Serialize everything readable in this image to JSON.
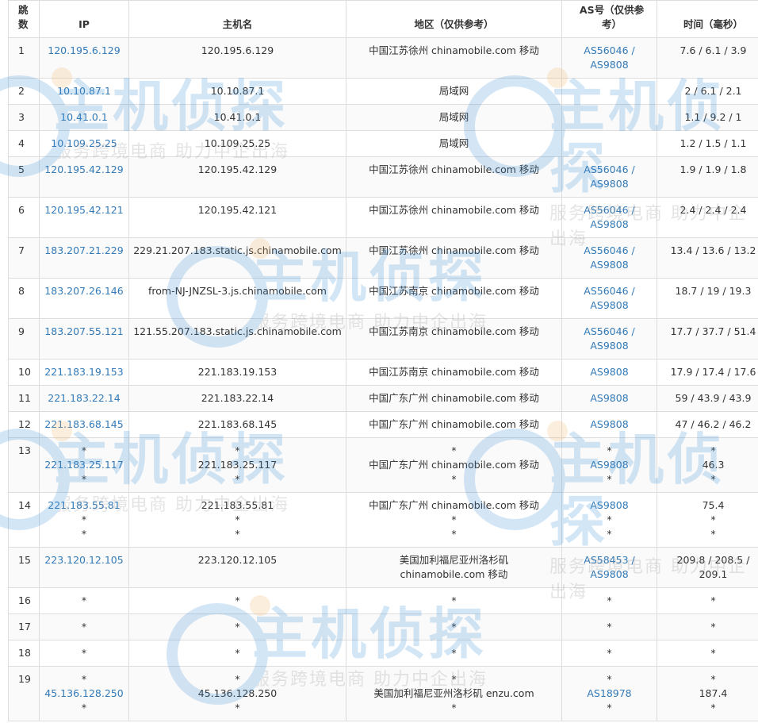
{
  "headers": {
    "hop": "跳数",
    "ip": "IP",
    "hostname": "主机名",
    "region": "地区（仅供参考）",
    "as": "AS号（仅供参考）",
    "time": "时间（毫秒）"
  },
  "colors": {
    "link": "#337ab7",
    "border": "#dddddd",
    "stripe": "#f9f9f9"
  },
  "watermark": {
    "logo": "主机侦探",
    "slogan": "服务跨境电商 助力中企出海"
  },
  "rows": [
    {
      "hop": "1",
      "ip": [
        "120.195.6.129"
      ],
      "host": [
        "120.195.6.129"
      ],
      "region": [
        "中国江苏徐州 chinamobile.com 移动"
      ],
      "as": [
        "AS56046 /",
        "AS9808"
      ],
      "time": [
        "7.6 / 6.1 / 3.9"
      ]
    },
    {
      "hop": "2",
      "ip": [
        "10.10.87.1"
      ],
      "host": [
        "10.10.87.1"
      ],
      "region": [
        "局域网"
      ],
      "as": [],
      "time": [
        "2 / 6.1 / 2.1"
      ]
    },
    {
      "hop": "3",
      "ip": [
        "10.41.0.1"
      ],
      "host": [
        "10.41.0.1"
      ],
      "region": [
        "局域网"
      ],
      "as": [],
      "time": [
        "1.1 / 9.2 / 1"
      ]
    },
    {
      "hop": "4",
      "ip": [
        "10.109.25.25"
      ],
      "host": [
        "10.109.25.25"
      ],
      "region": [
        "局域网"
      ],
      "as": [],
      "time": [
        "1.2 / 1.5 / 1.1"
      ]
    },
    {
      "hop": "5",
      "ip": [
        "120.195.42.129"
      ],
      "host": [
        "120.195.42.129"
      ],
      "region": [
        "中国江苏徐州 chinamobile.com 移动"
      ],
      "as": [
        "AS56046 /",
        "AS9808"
      ],
      "time": [
        "1.9 / 1.9 / 1.8"
      ]
    },
    {
      "hop": "6",
      "ip": [
        "120.195.42.121"
      ],
      "host": [
        "120.195.42.121"
      ],
      "region": [
        "中国江苏徐州 chinamobile.com 移动"
      ],
      "as": [
        "AS56046 /",
        "AS9808"
      ],
      "time": [
        "2.4 / 2.4 / 2.4"
      ]
    },
    {
      "hop": "7",
      "ip": [
        "183.207.21.229"
      ],
      "host": [
        "229.21.207.183.static.js.chinamobile.com"
      ],
      "region": [
        "中国江苏徐州 chinamobile.com 移动"
      ],
      "as": [
        "AS56046 /",
        "AS9808"
      ],
      "time": [
        "13.4 / 13.6 / 13.2"
      ]
    },
    {
      "hop": "8",
      "ip": [
        "183.207.26.146"
      ],
      "host": [
        "from-NJ-JNZSL-3.js.chinamobile.com"
      ],
      "region": [
        "中国江苏南京 chinamobile.com 移动"
      ],
      "as": [
        "AS56046 /",
        "AS9808"
      ],
      "time": [
        "18.7 / 19 / 19.3"
      ]
    },
    {
      "hop": "9",
      "ip": [
        "183.207.55.121"
      ],
      "host": [
        "121.55.207.183.static.js.chinamobile.com"
      ],
      "region": [
        "中国江苏南京 chinamobile.com 移动"
      ],
      "as": [
        "AS56046 /",
        "AS9808"
      ],
      "time": [
        "17.7 / 37.7 / 51.4"
      ]
    },
    {
      "hop": "10",
      "ip": [
        "221.183.19.153"
      ],
      "host": [
        "221.183.19.153"
      ],
      "region": [
        "中国江苏南京 chinamobile.com 移动"
      ],
      "as": [
        "AS9808"
      ],
      "time": [
        "17.9 / 17.4 / 17.6"
      ]
    },
    {
      "hop": "11",
      "ip": [
        "221.183.22.14"
      ],
      "host": [
        "221.183.22.14"
      ],
      "region": [
        "中国广东广州 chinamobile.com 移动"
      ],
      "as": [
        "AS9808"
      ],
      "time": [
        "59 / 43.9 / 43.9"
      ]
    },
    {
      "hop": "12",
      "ip": [
        "221.183.68.145"
      ],
      "host": [
        "221.183.68.145"
      ],
      "region": [
        "中国广东广州 chinamobile.com 移动"
      ],
      "as": [
        "AS9808"
      ],
      "time": [
        "47 / 46.2 / 46.2"
      ]
    },
    {
      "hop": "13",
      "ip": [
        "*",
        "221.183.25.117",
        "*"
      ],
      "host": [
        "*",
        "221.183.25.117",
        "*"
      ],
      "region": [
        "*",
        "中国广东广州 chinamobile.com 移动",
        "*"
      ],
      "as": [
        "*",
        "AS9808",
        "*"
      ],
      "time": [
        "*",
        "46.3",
        "*"
      ]
    },
    {
      "hop": "14",
      "ip": [
        "221.183.55.81",
        "*",
        "*"
      ],
      "host": [
        "221.183.55.81",
        "*",
        "*"
      ],
      "region": [
        "中国广东广州 chinamobile.com 移动",
        "*",
        "*"
      ],
      "as": [
        "AS9808",
        "*",
        "*"
      ],
      "time": [
        "75.4",
        "*",
        "*"
      ]
    },
    {
      "hop": "15",
      "ip": [
        "223.120.12.105"
      ],
      "host": [
        "223.120.12.105"
      ],
      "region": [
        "美国加利福尼亚州洛杉矶",
        "chinamobile.com 移动"
      ],
      "as": [
        "AS58453 /",
        "AS9808"
      ],
      "time": [
        "209.8 / 208.5 /",
        "209.1"
      ]
    },
    {
      "hop": "16",
      "ip": [
        "*"
      ],
      "host": [
        "*"
      ],
      "region": [
        "*"
      ],
      "as": [
        "*"
      ],
      "time": [
        "*"
      ]
    },
    {
      "hop": "17",
      "ip": [
        "*"
      ],
      "host": [
        "*"
      ],
      "region": [
        "*"
      ],
      "as": [
        "*"
      ],
      "time": [
        "*"
      ]
    },
    {
      "hop": "18",
      "ip": [
        "*"
      ],
      "host": [
        "*"
      ],
      "region": [
        "*"
      ],
      "as": [
        "*"
      ],
      "time": [
        "*"
      ]
    },
    {
      "hop": "19",
      "ip": [
        "*",
        "45.136.128.250",
        "*"
      ],
      "host": [
        "*",
        "45.136.128.250",
        "*"
      ],
      "region": [
        "*",
        "美国加利福尼亚州洛杉矶 enzu.com",
        "*"
      ],
      "as": [
        "*",
        "AS18978",
        "*"
      ],
      "time": [
        "*",
        "187.4",
        "*"
      ]
    }
  ]
}
